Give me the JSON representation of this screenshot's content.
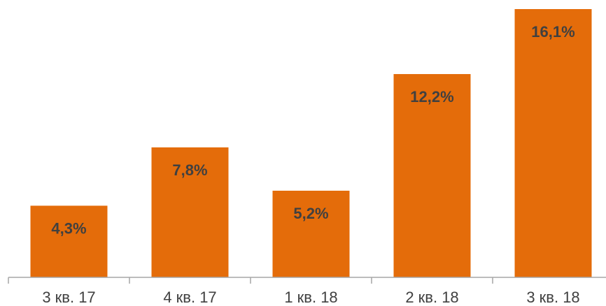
{
  "chart_data": {
    "type": "bar",
    "categories": [
      "3 кв. 17",
      "4 кв. 17",
      "1 кв. 18",
      "2 кв. 18",
      "3 кв. 18"
    ],
    "values": [
      4.3,
      7.8,
      5.2,
      12.2,
      16.1
    ],
    "data_labels": [
      "4,3%",
      "7,8%",
      "5,2%",
      "12,2%",
      "16,1%"
    ],
    "ylim": [
      0,
      16.1
    ],
    "grid": false,
    "legend": "none",
    "bar_color": "#E46C0A",
    "axis_color": "#A6A6A6",
    "text_color": "#404040"
  }
}
